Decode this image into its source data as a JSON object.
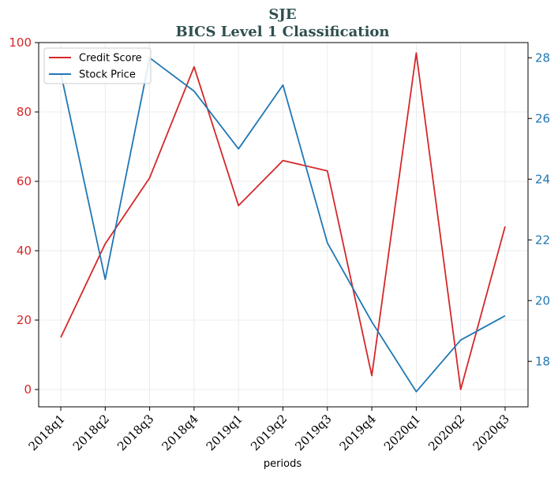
{
  "chart_data": {
    "type": "line",
    "title": "SJE",
    "subtitle": "BICS Level 1 Classification",
    "xlabel": "periods",
    "categories": [
      "2018q1",
      "2018q2",
      "2018q3",
      "2018q4",
      "2019q1",
      "2019q2",
      "2019q3",
      "2019q4",
      "2020q1",
      "2020q2",
      "2020q3"
    ],
    "y_left": {
      "ylim": [
        -5,
        100
      ],
      "ticks": [
        0,
        20,
        40,
        60,
        80,
        100
      ],
      "color": "#d62728"
    },
    "y_right": {
      "ylim": [
        16.5,
        28.5
      ],
      "ticks": [
        18,
        20,
        22,
        24,
        26,
        28
      ],
      "color": "#1f77b4"
    },
    "series": [
      {
        "name": "Credit Score",
        "axis": "left",
        "color": "#d62728",
        "values": [
          15,
          42,
          61,
          93,
          53,
          66,
          63,
          4,
          97,
          0,
          47
        ]
      },
      {
        "name": "Stock Price",
        "axis": "right",
        "color": "#1f77b4",
        "values": [
          27.5,
          20.7,
          28.0,
          26.9,
          25.0,
          27.1,
          21.9,
          19.3,
          17.0,
          18.7,
          19.5
        ]
      }
    ],
    "grid": true,
    "legend": "top-left"
  }
}
